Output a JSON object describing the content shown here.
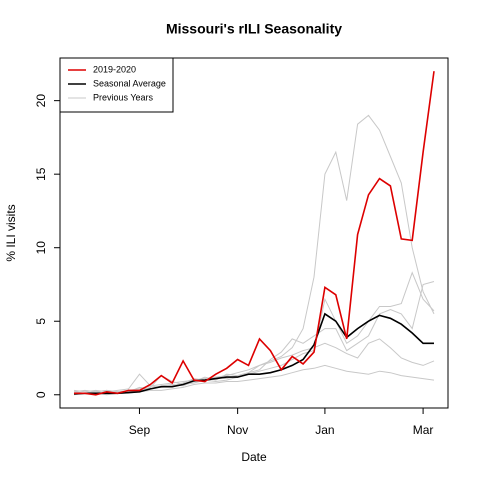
{
  "chart_data": {
    "type": "line",
    "title": "Missouri's rILI Seasonality",
    "x_label": "Date",
    "y_label": "% ILI visits",
    "categories": [
      null,
      null,
      null,
      null,
      null,
      null,
      "Sep",
      null,
      null,
      null,
      null,
      null,
      null,
      null,
      null,
      "Nov",
      null,
      null,
      null,
      null,
      null,
      null,
      null,
      "Jan",
      null,
      null,
      null,
      null,
      null,
      null,
      null,
      null,
      "Mar",
      null
    ],
    "ylim": [
      -0.9,
      22.9
    ],
    "yticks": [
      0,
      5,
      10,
      15,
      20
    ],
    "legend": "topleft",
    "series": [
      {
        "name": "2019-2020",
        "color": "#dd0000",
        "width": 1.6,
        "values": [
          0.1,
          0.1,
          0,
          0.2,
          0.1,
          0.3,
          0.3,
          0.7,
          1.3,
          0.8,
          2.3,
          1.0,
          0.9,
          1.4,
          1.8,
          2.4,
          2.0,
          3.8,
          3.0,
          1.7,
          2.6,
          2.1,
          2.9,
          7.3,
          6.8,
          3.8,
          10.9,
          13.6,
          14.7,
          14.2,
          10.6,
          10.5,
          16.5,
          22.0
        ]
      },
      {
        "name": "Seasonal Average",
        "color": "#000000",
        "width": 1.6,
        "values": [
          0.05,
          0.1,
          0.1,
          0.1,
          0.1,
          0.15,
          0.2,
          0.4,
          0.55,
          0.55,
          0.7,
          0.95,
          1.0,
          1.1,
          1.2,
          1.2,
          1.4,
          1.4,
          1.5,
          1.7,
          2.0,
          2.4,
          3.4,
          5.5,
          5.0,
          3.9,
          4.5,
          5.0,
          5.4,
          5.2,
          4.8,
          4.2,
          3.5,
          3.5
        ]
      },
      {
        "name": "Previous Years",
        "color": "#c8c8c8",
        "width": 1,
        "lines": [
          [
            0.2,
            0.3,
            0.2,
            0.3,
            0.2,
            0.3,
            0.4,
            0.6,
            0.7,
            0.8,
            0.9,
            1.0,
            1.1,
            1.2,
            1.3,
            1.5,
            1.7,
            2.0,
            2.3,
            2.6,
            3.2,
            4.5,
            8.0,
            15.0,
            16.5,
            13.2,
            18.4,
            19.0,
            18.0,
            16.2,
            14.4,
            10.0,
            7.0,
            5.5
          ],
          [
            0.1,
            0.1,
            0.2,
            0.1,
            0.2,
            0.2,
            0.3,
            0.5,
            1.3,
            0.9,
            0.7,
            0.8,
            1.0,
            0.9,
            1.0,
            1.2,
            1.4,
            1.6,
            1.8,
            2.0,
            2.4,
            2.8,
            3.0,
            6.5,
            5.0,
            3.5,
            4.0,
            5.0,
            6.0,
            6.0,
            6.2,
            8.3,
            6.5,
            5.7
          ],
          [
            0.3,
            0.2,
            0.3,
            0.2,
            0.3,
            0.4,
            1.4,
            0.6,
            0.5,
            0.6,
            0.8,
            1.1,
            1.0,
            1.2,
            1.1,
            1.3,
            1.5,
            1.7,
            2.4,
            2.9,
            3.8,
            3.5,
            4.0,
            4.5,
            4.5,
            3.0,
            3.5,
            4.0,
            5.5,
            5.8,
            5.5,
            4.5,
            7.5,
            7.7
          ],
          [
            0.0,
            0.1,
            0.1,
            0.0,
            0.1,
            0.1,
            0.2,
            0.3,
            0.3,
            0.4,
            0.5,
            0.7,
            0.8,
            0.8,
            0.9,
            0.9,
            1.0,
            1.1,
            1.2,
            1.3,
            1.5,
            1.7,
            1.8,
            2.0,
            1.8,
            1.6,
            1.5,
            1.4,
            1.6,
            1.5,
            1.3,
            1.2,
            1.1,
            1.0
          ],
          [
            0.2,
            0.1,
            0.2,
            0.3,
            0.2,
            0.2,
            0.5,
            0.4,
            0.6,
            0.7,
            0.6,
            0.9,
            1.2,
            1.0,
            1.4,
            1.3,
            1.5,
            2.0,
            2.2,
            2.5,
            2.7,
            3.0,
            3.2,
            3.5,
            3.2,
            2.8,
            2.5,
            3.5,
            3.8,
            3.2,
            2.5,
            2.2,
            2.0,
            2.3
          ]
        ]
      }
    ]
  }
}
